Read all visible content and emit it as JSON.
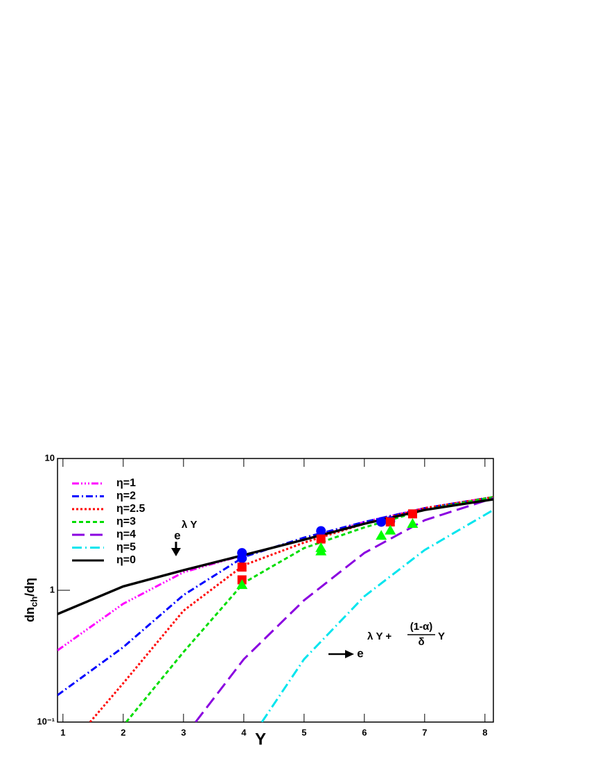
{
  "chart_data": {
    "type": "line",
    "log_y": true,
    "xlim": [
      0.91,
      8.14
    ],
    "xticks": [
      1,
      2,
      3,
      4,
      5,
      6,
      7,
      8
    ],
    "ylim": [
      0.1,
      10
    ],
    "yticks": [
      {
        "value": 0.1,
        "label": "10⁻¹"
      },
      1,
      10
    ],
    "x_label": "Y",
    "y_label": {
      "main": "dn",
      "sub": "ch",
      "rest": "/dη"
    },
    "legend": "upper left",
    "series": [
      {
        "name": "η=1",
        "color": "#ff00ff",
        "dash": "10,3,2,3,2,3,2,3",
        "x": [
          0.91,
          2,
          3,
          4,
          5,
          6,
          7,
          8.14
        ],
        "values": [
          0.35,
          0.79,
          1.37,
          1.85,
          2.42,
          3.3,
          4.2,
          5.1
        ]
      },
      {
        "name": "η=2",
        "color": "#0000ff",
        "dash": "10,4,2,4",
        "x": [
          0.91,
          2,
          3,
          4,
          5,
          6,
          7,
          8.14
        ],
        "values": [
          0.16,
          0.37,
          0.92,
          1.79,
          2.51,
          3.3,
          4.2,
          5.1
        ]
      },
      {
        "name": "η=2.5",
        "color": "#ff0000",
        "dash": "3,3",
        "x": [
          1.45,
          2,
          3,
          4,
          5,
          6,
          7,
          8.14
        ],
        "values": [
          0.1,
          0.197,
          0.7,
          1.55,
          2.3,
          3.2,
          4.2,
          5.1
        ]
      },
      {
        "name": "η=3",
        "color": "#00dd00",
        "dash": "6,4",
        "x": [
          2.05,
          3,
          4,
          5,
          6,
          7,
          8.14
        ],
        "values": [
          0.1,
          0.34,
          1.14,
          2.09,
          3.0,
          4.07,
          5.1
        ]
      },
      {
        "name": "η=4",
        "color": "#8a00e0",
        "dash": "18,8",
        "x": [
          3.2,
          4,
          5,
          6,
          7,
          8.14
        ],
        "values": [
          0.1,
          0.3,
          0.84,
          1.92,
          3.4,
          5.0
        ]
      },
      {
        "name": "η=5",
        "color": "#00e5ee",
        "dash": "14,5,2,5",
        "x": [
          4.3,
          5,
          6,
          7,
          8.14
        ],
        "values": [
          0.1,
          0.3,
          0.9,
          2.02,
          4.07
        ]
      },
      {
        "name": "η=0",
        "color": "#000000",
        "dash": "none",
        "x": [
          0.91,
          2,
          3,
          4,
          5,
          6,
          7,
          8.14
        ],
        "values": [
          0.66,
          1.07,
          1.42,
          1.85,
          2.42,
          3.2,
          4.07,
          4.9
        ]
      }
    ],
    "markers": [
      {
        "shape": "circle",
        "color": "#0000ff",
        "x": [
          3.97,
          3.97,
          5.28,
          6.28,
          6.43
        ],
        "values": [
          1.92,
          1.75,
          2.82,
          3.3,
          3.35
        ]
      },
      {
        "shape": "square",
        "color": "#ff0000",
        "x": [
          3.97,
          3.97,
          5.28,
          6.43,
          6.8
        ],
        "values": [
          1.5,
          1.2,
          2.45,
          3.3,
          3.8
        ]
      },
      {
        "shape": "triangle",
        "color": "#00ff00",
        "x": [
          3.97,
          5.28,
          5.28,
          6.28,
          6.43,
          6.8
        ],
        "values": [
          1.1,
          2.1,
          1.98,
          2.6,
          2.85,
          3.2
        ]
      }
    ],
    "annotations": [
      {
        "base": "e",
        "exponent": "λ Y"
      },
      {
        "base": "e",
        "exponent_pre": "λ Y +",
        "numerator": "(1-α)",
        "denominator": "δ",
        "exponent_post": "Y"
      }
    ]
  }
}
